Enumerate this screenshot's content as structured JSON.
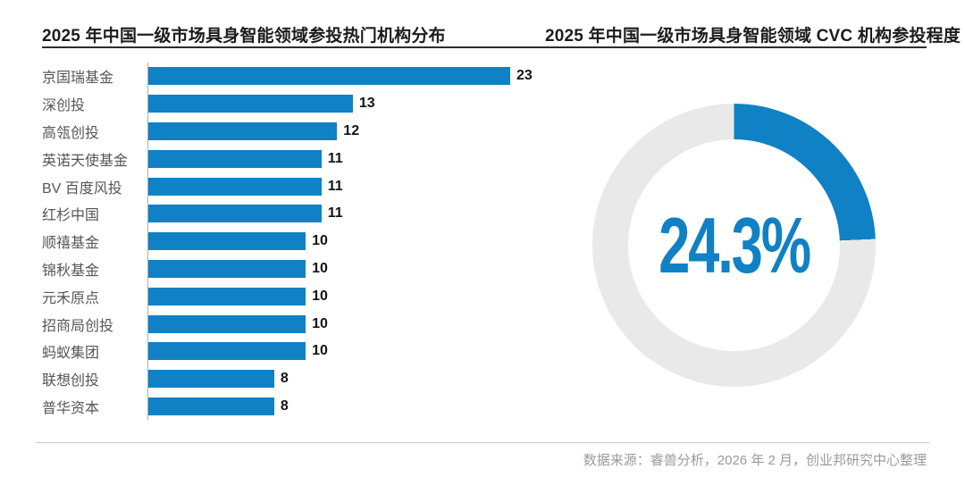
{
  "page": {
    "left_title": "2025 年中国一级市场具身智能领域参投热门机构分布",
    "right_title": "2025 年中国一级市场具身智能领域 CVC 机构参投程度",
    "footer": "数据来源：睿兽分析，2026 年 2 月，创业邦研究中心整理"
  },
  "colors": {
    "accent_blue": "#1081C4",
    "track_gray": "#E9E9E9",
    "title_dark": "#1C1C1C",
    "label_gray": "#565656",
    "footer_gray": "#9A9A9A"
  },
  "chart_data": [
    {
      "type": "bar",
      "orientation": "horizontal",
      "title": "2025 年中国一级市场具身智能领域参投热门机构分布",
      "categories": [
        "京国瑞基金",
        "深创投",
        "高瓴创投",
        "英诺天使基金",
        "BV 百度风投",
        "红杉中国",
        "顺禧基金",
        "锦秋基金",
        "元禾原点",
        "招商局创投",
        "蚂蚁集团",
        "联想创投",
        "普华资本"
      ],
      "values": [
        23,
        13,
        12,
        11,
        11,
        11,
        10,
        10,
        10,
        10,
        10,
        8,
        8
      ],
      "xlim": [
        0,
        25
      ],
      "value_labels": true,
      "grid": false,
      "legend": false
    },
    {
      "type": "pie",
      "subtype": "donut",
      "title": "2025 年中国一级市场具身智能领域 CVC 机构参投程度",
      "values": [
        24.3,
        75.7
      ],
      "center_label": "24.3%",
      "start_angle_deg": 0,
      "direction": "clockwise",
      "legend": false
    }
  ]
}
